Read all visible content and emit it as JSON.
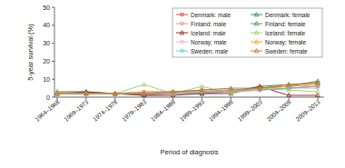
{
  "chart_data": {
    "type": "line",
    "x_label": "Period of diagnosis",
    "y_label": "5-year survival (%)",
    "categories": [
      "1964–1968",
      "1969–1973",
      "1974–1978",
      "1979–1983",
      "1984–1988",
      "1989–1993",
      "1994–1998",
      "1999–2003",
      "2004–2008",
      "2009–2013"
    ],
    "ylim": [
      0,
      50
    ],
    "yticks": [
      0,
      10,
      20,
      30,
      40,
      50
    ],
    "grid": false,
    "legend": "upper right",
    "series": [
      {
        "name": "Denmark: male",
        "color": "#e0301e",
        "marker": "circle",
        "values": [
          2,
          2,
          2,
          2,
          2,
          3,
          3,
          4,
          5,
          6
        ]
      },
      {
        "name": "Denmark: female",
        "color": "#1f7f7a",
        "marker": "triangle",
        "values": [
          2,
          2,
          2,
          1,
          2,
          2,
          3,
          6,
          7,
          8
        ]
      },
      {
        "name": "Finland: male",
        "color": "#f08080",
        "marker": "circle",
        "values": [
          2,
          2,
          2,
          3,
          3,
          4,
          4,
          5,
          6,
          7
        ]
      },
      {
        "name": "Finland: female",
        "color": "#3a9a3a",
        "marker": "triangle",
        "values": [
          2,
          3,
          2,
          2,
          3,
          3,
          4,
          5,
          6,
          9
        ]
      },
      {
        "name": "Iceland: male",
        "color": "#8b1a1a",
        "marker": "triangle",
        "values": [
          3,
          3,
          2,
          1,
          1,
          2,
          2,
          6,
          1,
          1
        ]
      },
      {
        "name": "Iceland: female",
        "color": "#9acd6a",
        "marker": "triangle",
        "values": [
          3,
          2,
          2,
          7,
          2,
          6,
          2,
          5,
          4,
          3
        ]
      },
      {
        "name": "Norway: male",
        "color": "#f4a6b8",
        "marker": "circle",
        "values": [
          2,
          2,
          2,
          2,
          2,
          3,
          3,
          4,
          5,
          5
        ]
      },
      {
        "name": "Norway: female",
        "color": "#f39c12",
        "marker": "triangle",
        "values": [
          2,
          2,
          2,
          3,
          3,
          3,
          4,
          5,
          6,
          7
        ]
      },
      {
        "name": "Sweden: male",
        "color": "#5bc0de",
        "marker": "circle",
        "values": [
          2,
          2,
          2,
          2,
          3,
          3,
          4,
          4,
          5,
          6
        ]
      },
      {
        "name": "Sweden: female",
        "color": "#d2691e",
        "marker": "triangle",
        "values": [
          2,
          2,
          2,
          2,
          3,
          4,
          5,
          5,
          7,
          8
        ]
      }
    ]
  }
}
